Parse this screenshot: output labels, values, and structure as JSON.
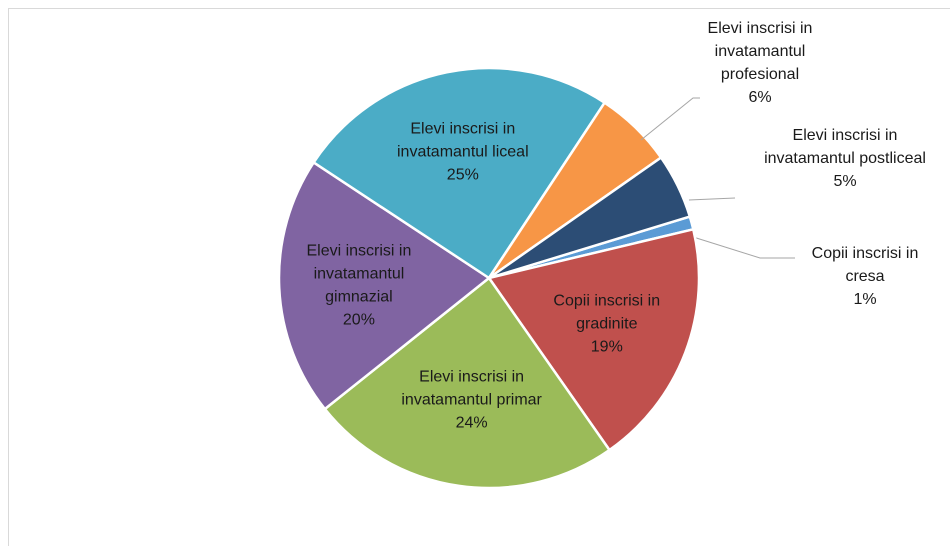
{
  "chart_data": {
    "type": "pie",
    "title": "",
    "legend": "none",
    "slices": [
      {
        "lines": [
          "Copii inscrisi in",
          "cresa"
        ],
        "pct": "1%",
        "value": 1,
        "color": "#5b9bd5"
      },
      {
        "lines": [
          "Copii inscrisi in",
          "gradinite"
        ],
        "pct": "19%",
        "value": 19,
        "color": "#c0504d"
      },
      {
        "lines": [
          "Elevi inscrisi in",
          "invatamantul primar"
        ],
        "pct": "24%",
        "value": 24,
        "color": "#9bbb59"
      },
      {
        "lines": [
          "Elevi inscrisi in",
          "invatamantul",
          "gimnazial"
        ],
        "pct": "20%",
        "value": 20,
        "color": "#8064a2"
      },
      {
        "lines": [
          "Elevi inscrisi in",
          "invatamantul liceal"
        ],
        "pct": "25%",
        "value": 25,
        "color": "#4bacc6"
      },
      {
        "lines": [
          "Elevi inscrisi in",
          "invatamantul",
          "profesional"
        ],
        "pct": "6%",
        "value": 6,
        "color": "#f79646"
      },
      {
        "lines": [
          "Elevi inscrisi in",
          "invatamantul postliceal"
        ],
        "pct": "5%",
        "value": 5,
        "color": "#2c4d75"
      }
    ]
  }
}
